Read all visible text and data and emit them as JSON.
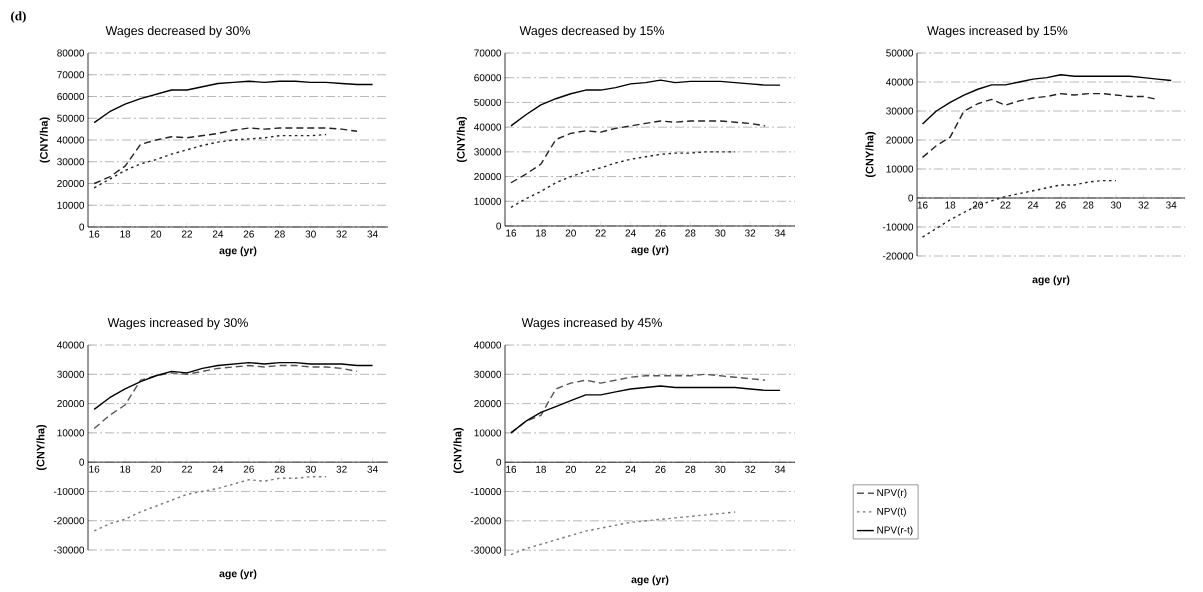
{
  "chart_data": [
    {
      "type": "line",
      "title": "Wages decreased by  30%",
      "xlabel": "age (yr)",
      "ylabel": "(CNY/ha)",
      "annotations": [
        "(d)"
      ],
      "x": [
        16,
        17,
        18,
        19,
        20,
        21,
        22,
        23,
        24,
        25,
        26,
        27,
        28,
        29,
        30,
        31,
        32,
        33,
        34
      ],
      "xlim": [
        15.6,
        35
      ],
      "xticks": [
        16,
        18,
        20,
        22,
        24,
        26,
        28,
        30,
        32,
        34
      ],
      "ylim": [
        0,
        80000
      ],
      "yticks": [
        0,
        10000,
        20000,
        30000,
        40000,
        50000,
        60000,
        70000,
        80000
      ],
      "grid": "y",
      "marker": "none",
      "series": [
        {
          "color": "#222222",
          "line_style": "dashed",
          "values": [
            20000,
            23000,
            28000,
            38000,
            40000,
            41500,
            41000,
            42000,
            43000,
            44500,
            45500,
            45000,
            45500,
            45500,
            45500,
            45500,
            45000,
            44000,
            null
          ]
        },
        {
          "color": "#222222",
          "line_style": "dotted",
          "values": [
            18000,
            22000,
            26000,
            29000,
            31000,
            33500,
            35500,
            37500,
            39000,
            40000,
            40500,
            41000,
            42000,
            42000,
            42000,
            42500,
            null,
            null,
            null
          ]
        },
        {
          "color": "#000000",
          "line_style": "solid",
          "values": [
            48000,
            53000,
            56500,
            59000,
            61000,
            63000,
            63000,
            64500,
            66000,
            66500,
            67000,
            66500,
            67000,
            67000,
            66500,
            66500,
            66000,
            65500,
            65500
          ]
        }
      ]
    },
    {
      "type": "line",
      "title": "Wages decreased by  15%",
      "xlabel": "age (yr)",
      "ylabel": "(CNY/ha)",
      "x": [
        16,
        17,
        18,
        19,
        20,
        21,
        22,
        23,
        24,
        25,
        26,
        27,
        28,
        29,
        30,
        31,
        32,
        33,
        34
      ],
      "xlim": [
        15.6,
        35
      ],
      "xticks": [
        16,
        18,
        20,
        22,
        24,
        26,
        28,
        30,
        32,
        34
      ],
      "ylim": [
        0,
        70000
      ],
      "yticks": [
        0,
        10000,
        20000,
        30000,
        40000,
        50000,
        60000,
        70000
      ],
      "grid": "y",
      "marker": "none",
      "series": [
        {
          "color": "#222222",
          "line_style": "dashed",
          "values": [
            17500,
            21000,
            25000,
            35000,
            37500,
            38500,
            38000,
            39500,
            40500,
            41500,
            42500,
            42000,
            42500,
            42500,
            42500,
            42000,
            41500,
            40500,
            null
          ]
        },
        {
          "color": "#222222",
          "line_style": "dotted",
          "values": [
            7500,
            11000,
            14000,
            17500,
            20000,
            22000,
            23500,
            25500,
            27000,
            28000,
            29000,
            29500,
            29500,
            30000,
            30000,
            30000,
            null,
            null,
            null
          ]
        },
        {
          "color": "#000000",
          "line_style": "solid",
          "values": [
            40500,
            45000,
            49000,
            51500,
            53500,
            55000,
            55000,
            56000,
            57500,
            58000,
            59000,
            58000,
            58500,
            58500,
            58500,
            58000,
            57500,
            57000,
            57000
          ]
        }
      ]
    },
    {
      "type": "line",
      "title": "Wages increased by 15%",
      "xlabel": "age (yr)",
      "ylabel": "(CNY/ha)",
      "x": [
        16,
        17,
        18,
        19,
        20,
        21,
        22,
        23,
        24,
        25,
        26,
        27,
        28,
        29,
        30,
        31,
        32,
        33,
        34
      ],
      "xlim": [
        15.6,
        35
      ],
      "xticks": [
        16,
        18,
        20,
        22,
        24,
        26,
        28,
        30,
        32,
        34
      ],
      "ylim": [
        -20000,
        50000
      ],
      "yticks": [
        -20000,
        -10000,
        0,
        10000,
        20000,
        30000,
        40000,
        50000
      ],
      "grid": "y",
      "marker": "none",
      "series": [
        {
          "color": "#222222",
          "line_style": "dashed",
          "values": [
            14000,
            18000,
            21000,
            30000,
            32500,
            34000,
            32000,
            33500,
            34500,
            35000,
            36000,
            35500,
            36000,
            36000,
            35500,
            35000,
            35000,
            34000,
            null
          ]
        },
        {
          "color": "#222222",
          "line_style": "dotted",
          "values": [
            -13500,
            -10500,
            -7500,
            -5000,
            -2500,
            -1000,
            500,
            1500,
            2500,
            3500,
            4500,
            4500,
            5500,
            6000,
            6000,
            null,
            null,
            null,
            null
          ]
        },
        {
          "color": "#000000",
          "line_style": "solid",
          "values": [
            25500,
            30000,
            33000,
            35500,
            37500,
            39000,
            39000,
            40000,
            41000,
            41500,
            42500,
            42000,
            42000,
            42000,
            42000,
            42000,
            41500,
            41000,
            40500
          ]
        }
      ]
    },
    {
      "type": "line",
      "title": "Wages increased by  30%",
      "xlabel": "age (yr)",
      "ylabel": "(CNY/ha)",
      "x": [
        16,
        17,
        18,
        19,
        20,
        21,
        22,
        23,
        24,
        25,
        26,
        27,
        28,
        29,
        30,
        31,
        32,
        33,
        34
      ],
      "xlim": [
        15.6,
        35
      ],
      "xticks": [
        16,
        18,
        20,
        22,
        24,
        26,
        28,
        30,
        32,
        34
      ],
      "ylim": [
        -30000,
        40000
      ],
      "yticks": [
        -30000,
        -20000,
        -10000,
        0,
        10000,
        20000,
        30000,
        40000
      ],
      "grid": "y",
      "marker": "none",
      "series": [
        {
          "color": "#555555",
          "line_style": "dashed",
          "values": [
            11500,
            16000,
            19500,
            28000,
            29500,
            30500,
            30000,
            31000,
            32000,
            32500,
            33000,
            32500,
            33000,
            33000,
            32500,
            32500,
            32000,
            31000,
            null
          ]
        },
        {
          "color": "#777777",
          "line_style": "dotted",
          "values": [
            -23500,
            -21000,
            -19500,
            -17000,
            -15000,
            -13000,
            -11000,
            -10000,
            -9000,
            -7500,
            -6000,
            -6500,
            -5500,
            -5500,
            -5000,
            -5000,
            null,
            null,
            null
          ]
        },
        {
          "color": "#000000",
          "line_style": "solid",
          "values": [
            18000,
            22000,
            25000,
            27500,
            29500,
            31000,
            30500,
            32000,
            33000,
            33500,
            34000,
            33500,
            34000,
            34000,
            33500,
            33500,
            33500,
            33000,
            33000
          ]
        }
      ]
    },
    {
      "type": "line",
      "title": "Wages increased by  45%",
      "xlabel": "age (yr)",
      "ylabel": "(CNY/ha)",
      "x": [
        16,
        17,
        18,
        19,
        20,
        21,
        22,
        23,
        24,
        25,
        26,
        27,
        28,
        29,
        30,
        31,
        32,
        33,
        34
      ],
      "xlim": [
        15.6,
        35
      ],
      "xticks": [
        16,
        18,
        20,
        22,
        24,
        26,
        28,
        30,
        32,
        34
      ],
      "ylim": [
        -32000,
        40000
      ],
      "yticks": [
        -30000,
        -20000,
        -10000,
        0,
        10000,
        20000,
        30000,
        40000
      ],
      "grid": "y",
      "marker": "none",
      "legend": "right",
      "series": [
        {
          "name": "NPV(r)",
          "color": "#555555",
          "line_style": "dashed",
          "values": [
            10000,
            14000,
            16000,
            25000,
            27000,
            28000,
            27000,
            28000,
            29000,
            29500,
            29500,
            29500,
            29500,
            30000,
            29500,
            29000,
            28500,
            28000,
            null
          ]
        },
        {
          "name": "NPV(t)",
          "color": "#777777",
          "line_style": "dotted",
          "values": [
            -31500,
            -29500,
            -28000,
            -26500,
            -25000,
            -23500,
            -22500,
            -21500,
            -20500,
            -20000,
            -19500,
            -19000,
            -18500,
            -18000,
            -17500,
            -17000,
            null,
            null,
            null
          ]
        },
        {
          "name": "NPV(r-t)",
          "color": "#000000",
          "line_style": "solid",
          "values": [
            10000,
            14000,
            17000,
            19000,
            21000,
            23000,
            23000,
            24000,
            25000,
            25500,
            26000,
            25500,
            25500,
            25500,
            25500,
            25500,
            25000,
            24500,
            24500
          ]
        }
      ]
    }
  ]
}
